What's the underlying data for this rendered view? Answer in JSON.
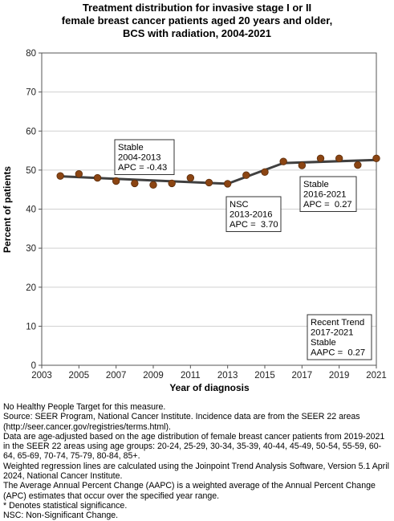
{
  "chart_data": {
    "type": "line",
    "title": [
      "Treatment distribution for invasive stage I or II",
      "female breast cancer patients aged 20 years and older,",
      "BCS with radiation,  2004-2021"
    ],
    "xlabel": "Year of diagnosis",
    "ylabel": "Percent of patients",
    "xlim": [
      2003,
      2021
    ],
    "ylim": [
      0,
      80
    ],
    "xticks": [
      2003,
      2005,
      2007,
      2009,
      2011,
      2013,
      2015,
      2017,
      2019,
      2021
    ],
    "yticks": [
      0,
      10,
      20,
      30,
      40,
      50,
      60,
      70,
      80
    ],
    "grid": "horizontal",
    "colors": {
      "points": "#8B4513",
      "trend": "#404040",
      "grid": "#d0d0d0"
    },
    "observed": {
      "x": [
        2004,
        2005,
        2006,
        2007,
        2008,
        2009,
        2010,
        2011,
        2012,
        2013,
        2014,
        2015,
        2016,
        2017,
        2018,
        2019,
        2020,
        2021
      ],
      "y": [
        48.5,
        49.0,
        48.0,
        47.2,
        46.6,
        46.2,
        46.6,
        48.0,
        46.8,
        46.5,
        48.7,
        49.5,
        52.2,
        51.2,
        53.0,
        53.0,
        51.3,
        53.0
      ]
    },
    "trend": {
      "x": [
        2004,
        2013,
        2016,
        2021
      ],
      "y": [
        48.4,
        46.5,
        51.8,
        52.6
      ]
    },
    "annotations": [
      {
        "lines": [
          "Stable",
          "2004-2013",
          "APC = -0.43"
        ]
      },
      {
        "lines": [
          "NSC",
          "2013-2016",
          "APC =  3.70"
        ]
      },
      {
        "lines": [
          "Stable",
          "2016-2021",
          "APC =  0.27"
        ]
      },
      {
        "lines": [
          "Recent Trend",
          "2017-2021",
          "Stable",
          "AAPC =  0.27"
        ]
      }
    ]
  },
  "footnotes": [
    "No Healthy People Target for this measure.",
    "Source: SEER Program, National Cancer Institute. Incidence data are from the SEER 22 areas (http://seer.cancer.gov/registries/terms.html).",
    "Data are age-adjusted based on the age distribution of female breast cancer patients from 2019-2021 in the SEER 22 areas using age groups: 20-24, 25-29, 30-34, 35-39, 40-44, 45-49, 50-54, 55-59, 60-64, 65-69, 70-74, 75-79, 80-84, 85+.",
    "Weighted regression lines are calculated using the Joinpoint Trend Analysis Software, Version 5.1 April 2024, National Cancer Institute.",
    "The Average Annual Percent Change (AAPC) is a weighted average of the Annual Percent Change (APC) estimates that occur over the specified year range.",
    "* Denotes statistical significance.",
    "NSC: Non-Significant Change."
  ]
}
